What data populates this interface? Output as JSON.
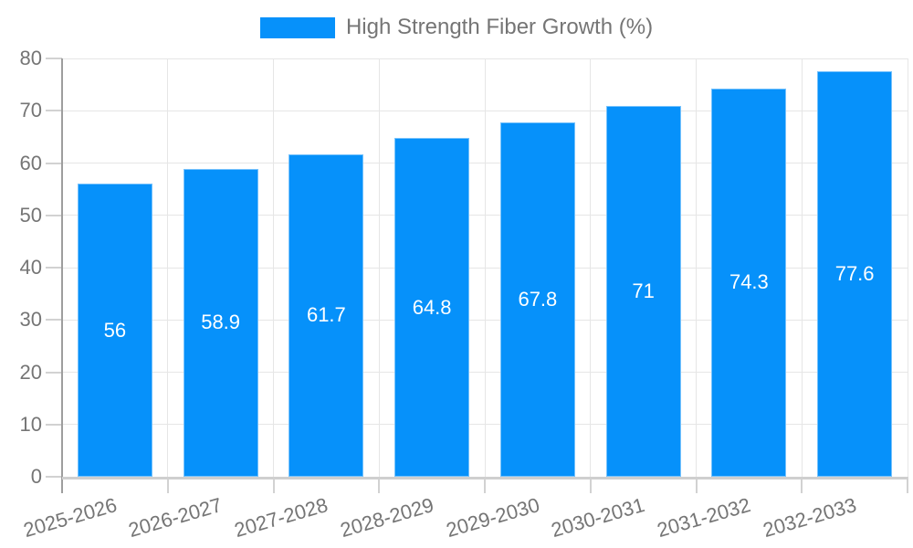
{
  "chart_data": {
    "type": "bar",
    "title": "",
    "categories": [
      "2025-2026",
      "2026-2027",
      "2027-2028",
      "2028-2029",
      "2029-2030",
      "2030-2031",
      "2031-2032",
      "2032-2033"
    ],
    "series": [
      {
        "name": "High Strength Fiber Growth (%)",
        "values": [
          56,
          58.9,
          61.7,
          64.8,
          67.8,
          71,
          74.3,
          77.6
        ]
      }
    ],
    "xlabel": "",
    "ylabel": "",
    "ylim": [
      0,
      80
    ],
    "ytick_interval": 10,
    "yticks": [
      0,
      10,
      20,
      30,
      40,
      50,
      60,
      70,
      80
    ],
    "grid": true,
    "legend_position": "top-center",
    "value_label_position": "inside-middle",
    "colors": {
      "bar": "#0691fa",
      "value_label": "#ffffff",
      "gridline": "#e6e6e6",
      "axis_line": "#9e9e9e",
      "tick": "#d2d2d2",
      "bottom_axis": "#cfcfcf",
      "axis_text": "#757575",
      "legend_text": "#757575",
      "background": "#ffffff"
    }
  }
}
